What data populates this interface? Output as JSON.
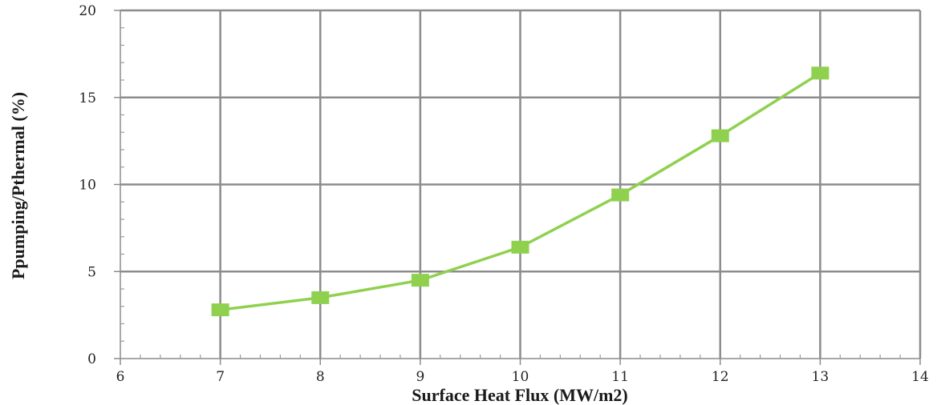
{
  "chart_data": {
    "type": "line",
    "title": "",
    "xlabel": "Surface Heat Flux (MW/m2)",
    "ylabel": "Ppumping/Pthermal (%)",
    "xlim": [
      6,
      14
    ],
    "ylim": [
      0,
      20
    ],
    "x_ticks": [
      "6",
      "7",
      "8",
      "9",
      "10",
      "11",
      "12",
      "13",
      "14"
    ],
    "y_ticks": [
      "0",
      "5",
      "10",
      "15",
      "20"
    ],
    "grid": {
      "vertical": true,
      "horizontal": true
    },
    "legend": "none",
    "series": [
      {
        "color": "#8fd14f",
        "marker": "square",
        "x": [
          7,
          8,
          9,
          10,
          11,
          12,
          13
        ],
        "y": [
          2.8,
          3.5,
          4.5,
          6.4,
          9.4,
          12.8,
          16.4
        ]
      }
    ]
  }
}
